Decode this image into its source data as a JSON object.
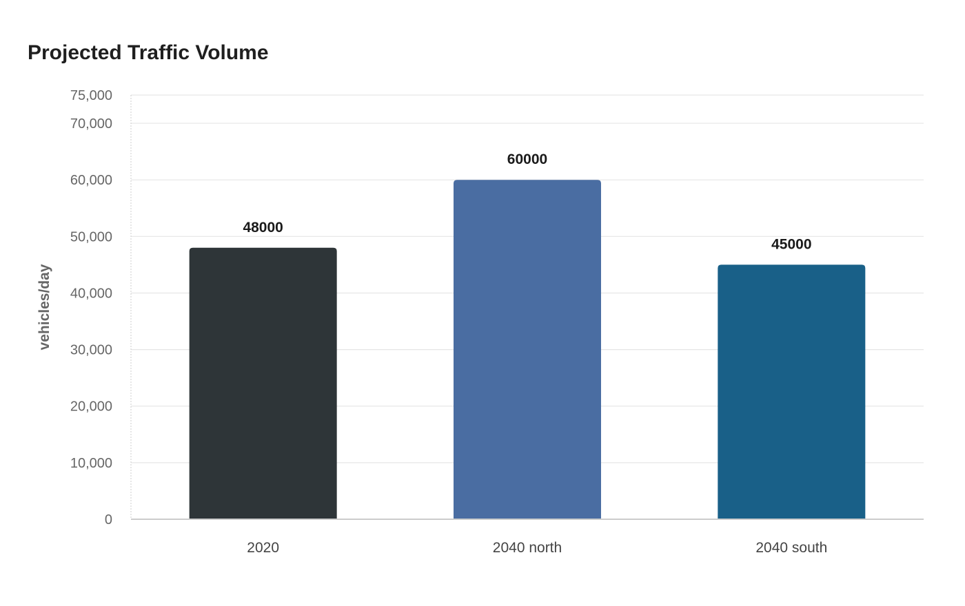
{
  "chart_data": {
    "type": "bar",
    "title": "Projected Traffic Volume",
    "xlabel": "",
    "ylabel": "vehicles/day",
    "categories": [
      "2020",
      "2040 north",
      "2040 south"
    ],
    "values": [
      48000,
      60000,
      45000
    ],
    "value_labels": [
      "48000",
      "60000",
      "45000"
    ],
    "colors": [
      "#2e3538",
      "#4a6da2",
      "#196088"
    ],
    "ylim": [
      0,
      75000
    ],
    "yticks": [
      0,
      10000,
      20000,
      30000,
      40000,
      50000,
      60000,
      70000,
      75000
    ],
    "ytick_labels": [
      "0",
      "10,000",
      "20,000",
      "30,000",
      "40,000",
      "50,000",
      "60,000",
      "70,000",
      "75,000"
    ],
    "grid": true,
    "legend": "none"
  }
}
